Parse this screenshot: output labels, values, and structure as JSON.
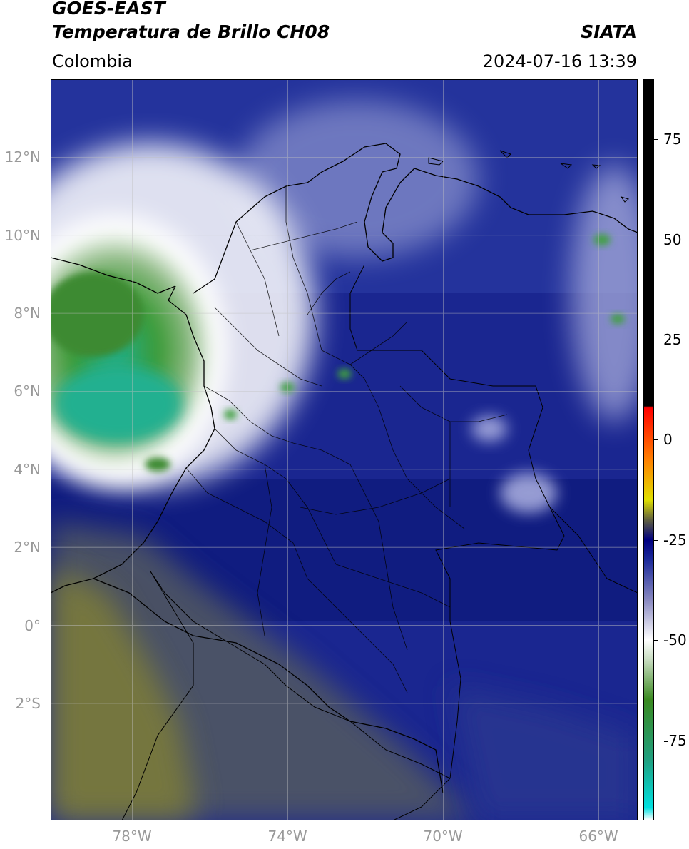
{
  "header": {
    "satellite": "GOES-EAST",
    "product": "Temperatura de Brillo CH08",
    "agency": "SIATA",
    "region": "Colombia",
    "datetime": "2024-07-16 13:39"
  },
  "map": {
    "extent": {
      "lon_min": -80.1,
      "lon_max": -65.0,
      "lat_min": -5.0,
      "lat_max": 14.0
    },
    "gridlines": true,
    "lat_ticks": [
      {
        "value": 12,
        "label": "12°N"
      },
      {
        "value": 10,
        "label": "10°N"
      },
      {
        "value": 8,
        "label": "8°N"
      },
      {
        "value": 6,
        "label": "6°N"
      },
      {
        "value": 4,
        "label": "4°N"
      },
      {
        "value": 2,
        "label": "2°N"
      },
      {
        "value": 0,
        "label": "0°"
      },
      {
        "value": -2,
        "label": "2°S"
      }
    ],
    "lon_ticks": [
      {
        "value": -78,
        "label": "78°W"
      },
      {
        "value": -74,
        "label": "74°W"
      },
      {
        "value": -70,
        "label": "70°W"
      },
      {
        "value": -66,
        "label": "66°W"
      }
    ]
  },
  "colorbar": {
    "range": [
      -95,
      90
    ],
    "ticks": [
      {
        "value": 75,
        "label": "75"
      },
      {
        "value": 50,
        "label": "50"
      },
      {
        "value": 25,
        "label": "25"
      },
      {
        "value": 0,
        "label": "0"
      },
      {
        "value": -25,
        "label": "-25"
      },
      {
        "value": -50,
        "label": "-50"
      },
      {
        "value": -75,
        "label": "-75"
      }
    ],
    "stops": [
      {
        "value": -95,
        "color": "#ffffff"
      },
      {
        "value": -92,
        "color": "#00e0e0"
      },
      {
        "value": -80,
        "color": "#20a080"
      },
      {
        "value": -65,
        "color": "#3a8a20"
      },
      {
        "value": -55,
        "color": "#c8dcc0"
      },
      {
        "value": -50,
        "color": "#ffffff"
      },
      {
        "value": -40,
        "color": "#8888c0"
      },
      {
        "value": -30,
        "color": "#1c2a9a"
      },
      {
        "value": -25,
        "color": "#000080"
      },
      {
        "value": -20,
        "color": "#606040"
      },
      {
        "value": -15,
        "color": "#e0e000"
      },
      {
        "value": -5,
        "color": "#ff8000"
      },
      {
        "value": 8,
        "color": "#ff0000"
      },
      {
        "value": 8.5,
        "color": "#000000"
      },
      {
        "value": 90,
        "color": "#000000"
      }
    ]
  }
}
